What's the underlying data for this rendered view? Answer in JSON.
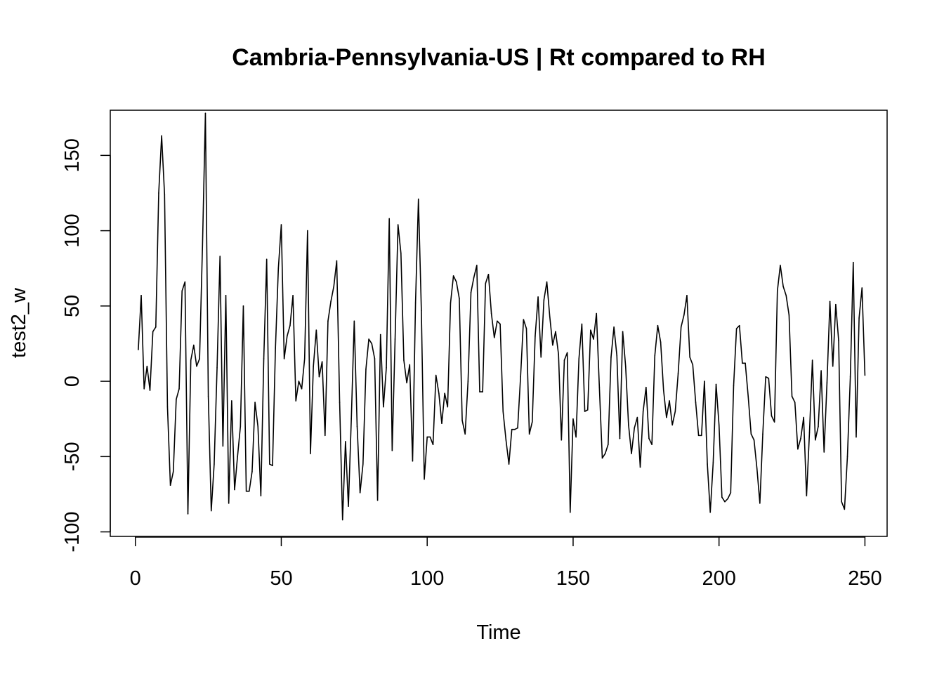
{
  "chart_data": {
    "type": "line",
    "title": "Cambria-Pennsylvania-US | Rt compared to RH",
    "xlabel": "Time",
    "ylabel": "test2_w",
    "xlim": [
      -8.6,
      257.6
    ],
    "ylim": [
      -103,
      180
    ],
    "xticks": [
      0,
      50,
      100,
      150,
      200,
      250
    ],
    "yticks": [
      -100,
      -50,
      0,
      50,
      100,
      150
    ],
    "xtick_labels": [
      "0",
      "50",
      "100",
      "150",
      "200",
      "250"
    ],
    "ytick_labels": [
      "-100",
      "-50",
      "0",
      "50",
      "100",
      "150"
    ],
    "grid": false,
    "line_color": "#000000",
    "series": [
      {
        "x_start": 1,
        "x_step": 1,
        "values": [
          21,
          57,
          -5,
          10,
          -6,
          33,
          36,
          125,
          163,
          124,
          -17,
          -69,
          -60,
          -12,
          -5,
          60,
          66,
          -88,
          14,
          24,
          10,
          15,
          90,
          178,
          -10,
          -86,
          -55,
          9,
          83,
          -43,
          57,
          -81,
          -13,
          -72,
          -50,
          -30,
          50,
          -73,
          -73,
          -60,
          -14,
          -30,
          -76,
          15,
          81,
          -55,
          -56,
          22,
          75,
          104,
          15,
          30,
          37,
          57,
          -13,
          0,
          -5,
          15,
          100,
          -48,
          10,
          34,
          3,
          13,
          -36,
          40,
          53,
          63,
          80,
          -14,
          -92,
          -40,
          -83,
          -25,
          40,
          -30,
          -74,
          -55,
          8,
          28,
          25,
          15,
          -79,
          31,
          -17,
          9,
          108,
          -46,
          28,
          104,
          85,
          14,
          -1,
          11,
          -53,
          52,
          121,
          47,
          -65,
          -37,
          -37,
          -42,
          4,
          -8,
          -28,
          -8,
          -17,
          52,
          70,
          66,
          55,
          -26,
          -35,
          0,
          59,
          69,
          77,
          -7,
          -7,
          65,
          71,
          45,
          29,
          40,
          38,
          -20,
          -39,
          -55,
          -32,
          -32,
          -31,
          3,
          41,
          35,
          -35,
          -27,
          30,
          56,
          16,
          54,
          66,
          43,
          24,
          33,
          18,
          -39,
          14,
          19,
          -87,
          -25,
          -37,
          15,
          38,
          -20,
          -19,
          34,
          28,
          45,
          -4,
          -51,
          -48,
          -42,
          16,
          36,
          17,
          -38,
          33,
          10,
          -29,
          -48,
          -31,
          -24,
          -57,
          -20,
          -4,
          -38,
          -42,
          17,
          37,
          26,
          -6,
          -24,
          -13,
          -29,
          -20,
          5,
          36,
          44,
          57,
          16,
          11,
          -14,
          -36,
          -36,
          0,
          -55,
          -87,
          -54,
          -2,
          -29,
          -77,
          -80,
          -78,
          -74,
          -3,
          35,
          37,
          12,
          12,
          -10,
          -35,
          -39,
          -58,
          -81,
          -35,
          3,
          2,
          -23,
          -27,
          60,
          77,
          63,
          57,
          44,
          -10,
          -14,
          -45,
          -38,
          -24,
          -76,
          -34,
          14,
          -39,
          -30,
          7,
          -47,
          -1,
          53,
          10,
          51,
          27,
          -80,
          -85,
          -50,
          3,
          79,
          -37,
          42,
          62,
          4
        ]
      }
    ]
  }
}
